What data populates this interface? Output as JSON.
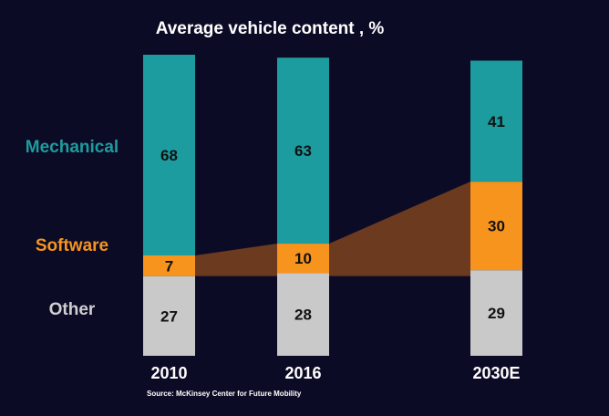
{
  "chart_data": {
    "type": "bar",
    "title": "Average vehicle content , %",
    "categories": [
      "2010",
      "2016",
      "2030E"
    ],
    "series": [
      {
        "name": "Other",
        "values": [
          27,
          28,
          29
        ],
        "color": "#c9c9c9"
      },
      {
        "name": "Software",
        "values": [
          7,
          10,
          30
        ],
        "color": "#f7941d"
      },
      {
        "name": "Mechanical",
        "values": [
          68,
          63,
          41
        ],
        "color": "#1c9c9e"
      }
    ],
    "stacked": true,
    "software_band_color": "#6b3a1f",
    "label_text_color": "#111111",
    "source": "Source: McKinsey Center for Future Mobility"
  }
}
